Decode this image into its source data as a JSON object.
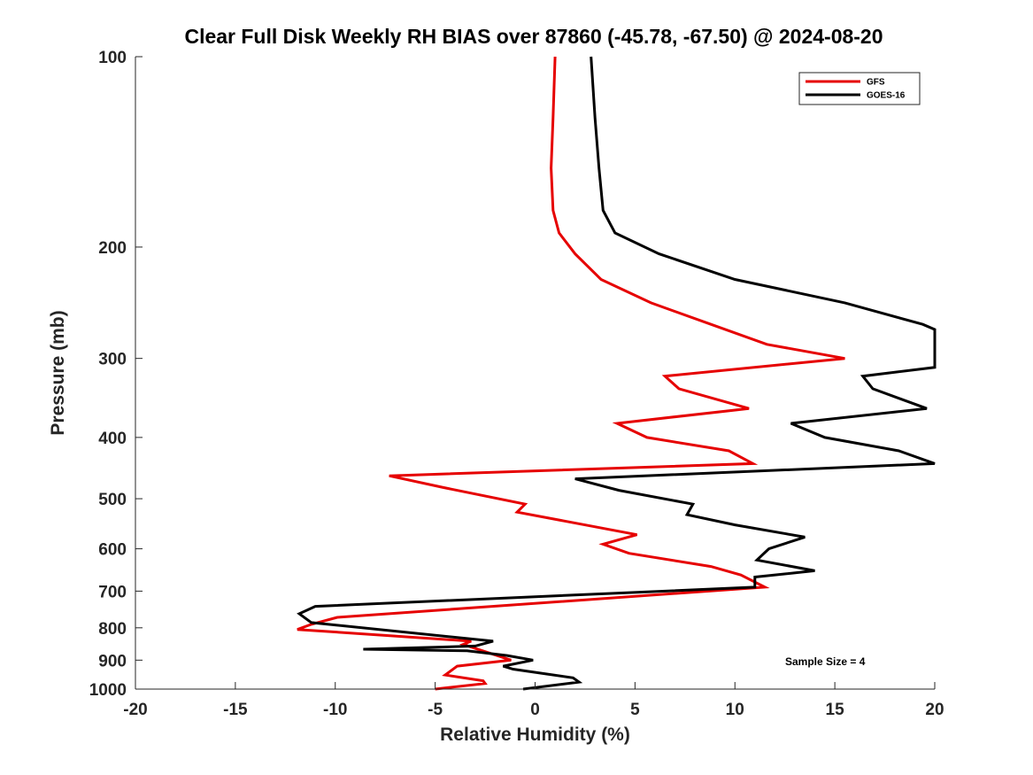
{
  "chart_data": {
    "type": "line",
    "title": "Clear Full Disk Weekly RH BIAS over 87860 (-45.78, -67.50) @ 2024-08-20",
    "xlabel": "Relative Humidity (%)",
    "ylabel": "Pressure (mb)",
    "xlim": [
      -20,
      20
    ],
    "ylim": [
      100,
      1000
    ],
    "y_scale": "log",
    "y_reversed": true,
    "x_ticks": [
      "-20",
      "-15",
      "-10",
      "-5",
      "0",
      "5",
      "10",
      "15",
      "20"
    ],
    "y_ticks": [
      "100",
      "200",
      "300",
      "400",
      "500",
      "600",
      "700",
      "800",
      "900",
      "1000"
    ],
    "grid": false,
    "legend_position": "top-right",
    "annotation": "Sample Size = 4",
    "series": [
      {
        "name": "GFS",
        "color": "#e60000",
        "points": [
          [
            1.0,
            100
          ],
          [
            0.9,
            125
          ],
          [
            0.8,
            150
          ],
          [
            0.9,
            175
          ],
          [
            1.2,
            190
          ],
          [
            2.0,
            205
          ],
          [
            3.3,
            225
          ],
          [
            5.8,
            245
          ],
          [
            8.8,
            265
          ],
          [
            11.6,
            285
          ],
          [
            15.5,
            300
          ],
          [
            6.5,
            320
          ],
          [
            7.2,
            335
          ],
          [
            10.7,
            360
          ],
          [
            4.1,
            380
          ],
          [
            5.6,
            400
          ],
          [
            9.7,
            420
          ],
          [
            10.9,
            440
          ],
          [
            -7.3,
            460
          ],
          [
            -4.6,
            480
          ],
          [
            -0.5,
            510
          ],
          [
            -0.9,
            525
          ],
          [
            5.1,
            570
          ],
          [
            3.4,
            590
          ],
          [
            4.7,
            610
          ],
          [
            8.8,
            640
          ],
          [
            10.3,
            660
          ],
          [
            11.5,
            690
          ],
          [
            -9.9,
            770
          ],
          [
            -11.2,
            790
          ],
          [
            -11.9,
            805
          ],
          [
            -3.2,
            840
          ],
          [
            -3.6,
            850
          ],
          [
            -1.2,
            900
          ],
          [
            -3.9,
            920
          ],
          [
            -4.5,
            950
          ],
          [
            -2.6,
            970
          ],
          [
            -2.5,
            980
          ],
          [
            -5.0,
            1000
          ]
        ]
      },
      {
        "name": "GOES-16",
        "color": "#000000",
        "points": [
          [
            2.8,
            100
          ],
          [
            3.0,
            125
          ],
          [
            3.2,
            150
          ],
          [
            3.4,
            175
          ],
          [
            4.0,
            190
          ],
          [
            6.2,
            205
          ],
          [
            10.0,
            225
          ],
          [
            15.5,
            245
          ],
          [
            19.4,
            265
          ],
          [
            20.0,
            270
          ],
          [
            20.0,
            310
          ],
          [
            16.4,
            320
          ],
          [
            16.9,
            335
          ],
          [
            19.6,
            360
          ],
          [
            12.8,
            380
          ],
          [
            14.5,
            400
          ],
          [
            18.2,
            420
          ],
          [
            20.0,
            440
          ],
          [
            2.0,
            465
          ],
          [
            4.2,
            485
          ],
          [
            7.9,
            510
          ],
          [
            7.6,
            530
          ],
          [
            10.0,
            550
          ],
          [
            13.5,
            575
          ],
          [
            11.7,
            600
          ],
          [
            11.1,
            625
          ],
          [
            14.0,
            650
          ],
          [
            11.0,
            665
          ],
          [
            11.0,
            690
          ],
          [
            -11.0,
            740
          ],
          [
            -11.8,
            760
          ],
          [
            -11.2,
            785
          ],
          [
            -2.1,
            840
          ],
          [
            -3.0,
            855
          ],
          [
            -8.6,
            865
          ],
          [
            -3.4,
            870
          ],
          [
            -1.4,
            885
          ],
          [
            -0.1,
            900
          ],
          [
            -1.6,
            920
          ],
          [
            -1.1,
            930
          ],
          [
            1.9,
            960
          ],
          [
            2.2,
            975
          ],
          [
            -0.6,
            1000
          ]
        ]
      }
    ]
  }
}
